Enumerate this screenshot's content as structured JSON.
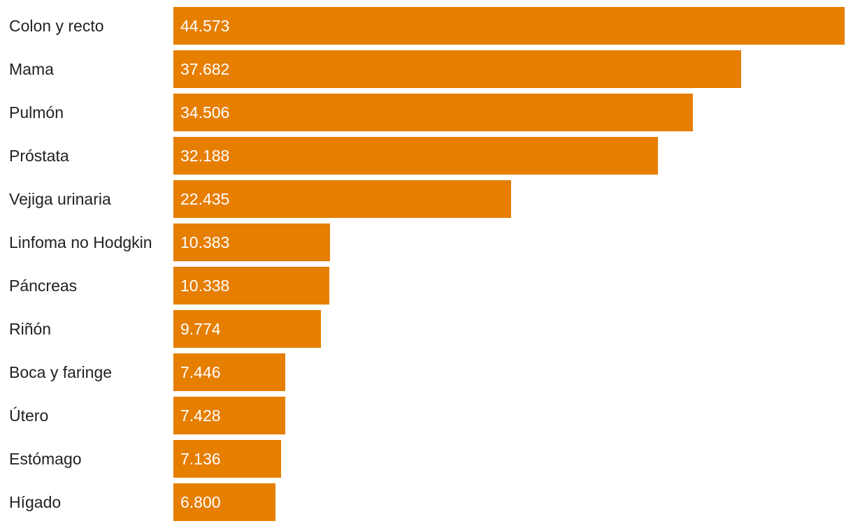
{
  "chart_data": {
    "type": "bar",
    "orientation": "horizontal",
    "categories": [
      "Colon y recto",
      "Mama",
      "Pulmón",
      "Próstata",
      "Vejiga urinaria",
      "Linfoma no Hodgkin",
      "Páncreas",
      "Riñón",
      "Boca y faringe",
      "Útero",
      "Estómago",
      "Hígado"
    ],
    "values": [
      44573,
      37682,
      34506,
      32188,
      22435,
      10383,
      10338,
      9774,
      7446,
      7428,
      7136,
      6800
    ],
    "value_labels": [
      "44.573",
      "37.682",
      "34.506",
      "32.188",
      "22.435",
      "10.383",
      "10.338",
      "9.774",
      "7.446",
      "7.428",
      "7.136",
      "6.800"
    ],
    "xlim": [
      0,
      44573
    ],
    "grid": false,
    "bar_color": "#e67e00"
  }
}
